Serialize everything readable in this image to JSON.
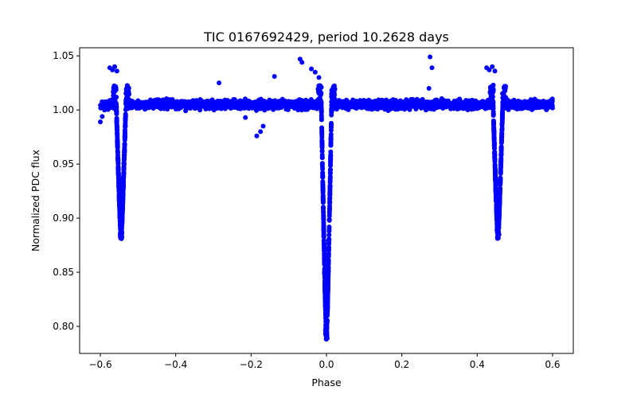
{
  "chart_data": {
    "type": "scatter",
    "title": "TIC 0167692429, period 10.2628 days",
    "xlabel": "Phase",
    "ylabel": "Normalized PDC flux",
    "xlim": [
      -0.655,
      0.655
    ],
    "ylim": [
      0.775,
      1.0575
    ],
    "xticks": [
      -0.6,
      -0.4,
      -0.2,
      0.0,
      0.2,
      0.4,
      0.6
    ],
    "xtick_labels": [
      "−0.6",
      "−0.4",
      "−0.2",
      "0.0",
      "0.2",
      "0.4",
      "0.6"
    ],
    "yticks": [
      0.8,
      0.85,
      0.9,
      0.95,
      1.0,
      1.05
    ],
    "ytick_labels": [
      "0.80",
      "0.85",
      "0.90",
      "0.95",
      "1.00",
      "1.05"
    ],
    "marker_color": "#0000ff",
    "baseline_flux": 1.005,
    "eclipses": [
      {
        "name": "secondary-left",
        "center": -0.545,
        "depth_min": 0.881,
        "halfwidth": 0.015
      },
      {
        "name": "primary",
        "center": 0.0,
        "depth_min": 0.788,
        "halfwidth": 0.016
      },
      {
        "name": "secondary-right",
        "center": 0.455,
        "depth_min": 0.881,
        "halfwidth": 0.015
      }
    ],
    "outlier_points": [
      [
        -0.575,
        1.039
      ],
      [
        -0.568,
        1.037
      ],
      [
        -0.562,
        1.04
      ],
      [
        -0.556,
        1.036
      ],
      [
        -0.285,
        1.025
      ],
      [
        -0.138,
        1.031
      ],
      [
        -0.07,
        1.047
      ],
      [
        -0.065,
        1.044
      ],
      [
        -0.04,
        1.038
      ],
      [
        -0.03,
        1.035
      ],
      [
        -0.02,
        1.03
      ],
      [
        0.275,
        1.049
      ],
      [
        0.28,
        1.039
      ],
      [
        0.272,
        1.02
      ],
      [
        0.425,
        1.039
      ],
      [
        0.432,
        1.037
      ],
      [
        0.44,
        1.04
      ],
      [
        0.447,
        1.036
      ],
      [
        -0.185,
        0.976
      ],
      [
        -0.175,
        0.98
      ],
      [
        -0.168,
        0.985
      ],
      [
        -0.215,
        0.993
      ],
      [
        -0.6,
        0.989
      ],
      [
        -0.595,
        0.994
      ]
    ]
  }
}
